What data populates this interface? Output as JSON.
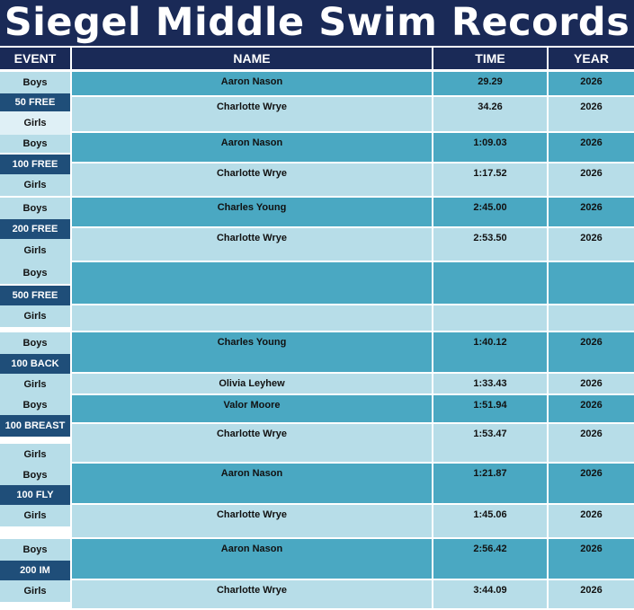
{
  "title": "Siegel Middle Swim Records",
  "headers": {
    "event": "EVENT",
    "name": "NAME",
    "time": "TIME",
    "year": "YEAR"
  },
  "labels": {
    "boys": "Boys",
    "girls": "Girls"
  },
  "colors": {
    "title_bg": "#1a2a57",
    "event_bg": "#1f4e79",
    "row_dark": "#4aa8c2",
    "row_light": "#b7dde8"
  },
  "events": [
    {
      "name": "50 FREE",
      "boys": {
        "name": "Aaron Nason",
        "time": "29.29",
        "year": "2026"
      },
      "girls": {
        "name": "Charlotte Wrye",
        "time": "34.26",
        "year": "2026"
      }
    },
    {
      "name": "100 FREE",
      "boys": {
        "name": "Aaron Nason",
        "time": "1:09.03",
        "year": "2026"
      },
      "girls": {
        "name": "Charlotte Wrye",
        "time": "1:17.52",
        "year": "2026"
      }
    },
    {
      "name": "200 FREE",
      "boys": {
        "name": "Charles Young",
        "time": "2:45.00",
        "year": "2026"
      },
      "girls": {
        "name": "Charlotte Wrye",
        "time": "2:53.50",
        "year": "2026"
      }
    },
    {
      "name": "500 FREE",
      "boys": {
        "name": "",
        "time": "",
        "year": ""
      },
      "girls": {
        "name": "",
        "time": "",
        "year": ""
      }
    },
    {
      "name": "100 BACK",
      "boys": {
        "name": "Charles Young",
        "time": "1:40.12",
        "year": "2026"
      },
      "girls": {
        "name": "Olivia Leyhew",
        "time": "1:33.43",
        "year": "2026"
      }
    },
    {
      "name": "100 BREAST",
      "boys": {
        "name": "Valor Moore",
        "time": "1:51.94",
        "year": "2026"
      },
      "girls": {
        "name": "Charlotte Wrye",
        "time": "1:53.47",
        "year": "2026"
      }
    },
    {
      "name": "100 FLY",
      "boys": {
        "name": "Aaron Nason",
        "time": "1:21.87",
        "year": "2026"
      },
      "girls": {
        "name": "Charlotte Wrye",
        "time": "1:45.06",
        "year": "2026"
      }
    },
    {
      "name": "200 IM",
      "boys": {
        "name": "Aaron Nason",
        "time": "2:56.42",
        "year": "2026"
      },
      "girls": {
        "name": "Charlotte Wrye",
        "time": "3:44.09",
        "year": "2026"
      }
    }
  ]
}
